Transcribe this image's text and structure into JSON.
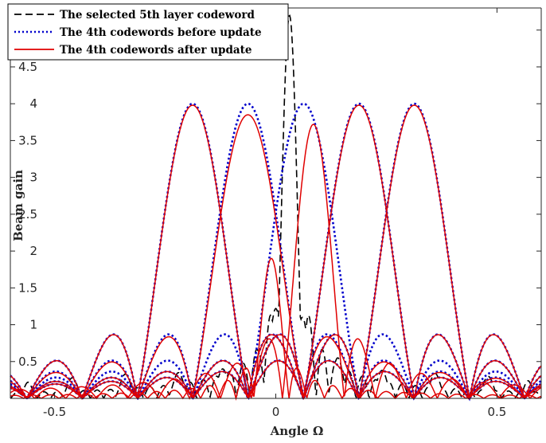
{
  "chart_data": {
    "type": "line",
    "title": "",
    "xlabel": "Angle Ω",
    "ylabel": "Beam gain",
    "xlim": [
      -0.6,
      0.6
    ],
    "ylim": [
      0,
      5.3
    ],
    "xticks": [
      -0.5,
      0,
      0.5
    ],
    "xtick_labels": [
      "-0.5",
      "0",
      "0.5"
    ],
    "yticks": [
      0.5,
      1,
      1.5,
      2,
      2.5,
      3,
      3.5,
      4,
      4.5,
      5
    ],
    "ytick_labels": [
      "0.5",
      "1",
      "1.5",
      "2",
      "2.5",
      "3",
      "3.5",
      "4",
      "4.5",
      "5"
    ],
    "grid": false,
    "legend_position": "top-left",
    "series": [
      {
        "name": "The selected 5th layer codeword",
        "color": "#000000",
        "dash": "dashed",
        "peak_gain": 5.2,
        "beams": [
          {
            "center": 0.031,
            "gain": 5.2,
            "halfwidth": 0.03
          },
          {
            "center": 0.0,
            "gain": 1.22,
            "halfwidth": 0.03
          },
          {
            "center": 0.06,
            "gain": 1.1,
            "halfwidth": 0.03
          },
          {
            "center": -0.04,
            "gain": 0.65,
            "halfwidth": 0.02
          },
          {
            "center": -0.12,
            "gain": 0.4,
            "halfwidth": 0.025
          },
          {
            "center": -0.22,
            "gain": 0.35,
            "halfwidth": 0.025
          },
          {
            "center": -0.34,
            "gain": 0.33,
            "halfwidth": 0.025
          },
          {
            "center": -0.46,
            "gain": 0.28,
            "halfwidth": 0.025
          },
          {
            "center": -0.56,
            "gain": 0.22,
            "halfwidth": 0.02
          },
          {
            "center": 0.14,
            "gain": 0.55,
            "halfwidth": 0.025
          },
          {
            "center": 0.24,
            "gain": 0.38,
            "halfwidth": 0.025
          },
          {
            "center": 0.36,
            "gain": 0.34,
            "halfwidth": 0.025
          },
          {
            "center": 0.48,
            "gain": 0.3,
            "halfwidth": 0.025
          },
          {
            "center": 0.57,
            "gain": 0.24,
            "halfwidth": 0.02
          }
        ]
      },
      {
        "name": "The 4th codewords before update",
        "color": "#0000cc",
        "dash": "dotted",
        "beams": [
          {
            "center": -0.188,
            "gain": 4.0,
            "halfwidth": 0.125
          },
          {
            "center": -0.063,
            "gain": 4.0,
            "halfwidth": 0.125
          },
          {
            "center": 0.063,
            "gain": 4.0,
            "halfwidth": 0.125
          },
          {
            "center": 0.188,
            "gain": 4.0,
            "halfwidth": 0.125
          },
          {
            "center": 0.313,
            "gain": 4.0,
            "halfwidth": 0.125
          }
        ]
      },
      {
        "name": "The 4th codewords after update",
        "color": "#e00000",
        "dash": "solid",
        "beams": [
          {
            "center": -0.188,
            "gain": 3.98,
            "halfwidth": 0.125
          },
          {
            "center": -0.063,
            "gain": 3.85,
            "halfwidth": 0.125
          },
          {
            "center": 0.085,
            "gain": 3.72,
            "halfwidth": 0.07
          },
          {
            "center": 0.188,
            "gain": 3.98,
            "halfwidth": 0.125
          },
          {
            "center": 0.313,
            "gain": 3.98,
            "halfwidth": 0.125
          },
          {
            "center": -0.01,
            "gain": 1.9,
            "halfwidth": 0.04
          }
        ]
      }
    ]
  }
}
